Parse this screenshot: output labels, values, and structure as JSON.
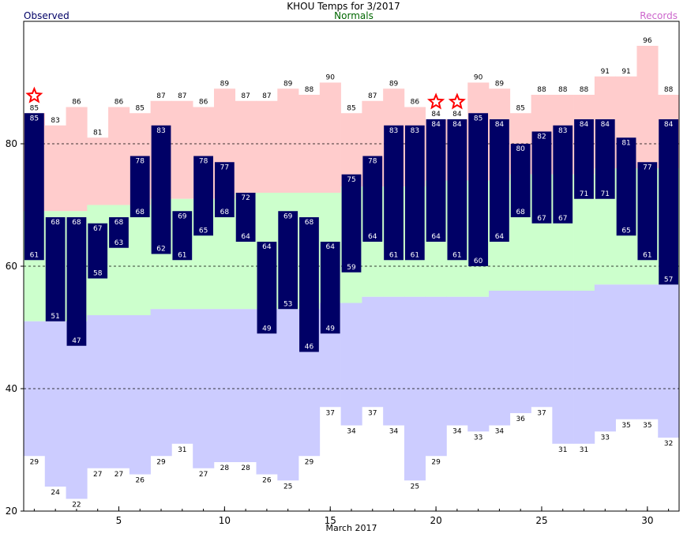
{
  "legend": {
    "observed": "Observed",
    "normals": "Normals",
    "records": "Records"
  },
  "colors": {
    "observed": "#000066",
    "normals_text": "#006600",
    "records_text": "#cc66cc",
    "record_high_band": "#ffcccc",
    "normal_band": "#ccffcc",
    "record_low_band": "#ccccff",
    "star": "#ff0000"
  },
  "chart_data": {
    "type": "bar",
    "title": "KHOU Temps for  3/2017",
    "xlabel": "March 2017",
    "ylabel": "",
    "xlim": [
      1,
      31
    ],
    "ylim": [
      20,
      100
    ],
    "yticks": [
      20,
      40,
      60,
      80
    ],
    "xticks": [
      5,
      10,
      15,
      20,
      25,
      30
    ],
    "grid_y": [
      40,
      60,
      80
    ],
    "days": [
      1,
      2,
      3,
      4,
      5,
      6,
      7,
      8,
      9,
      10,
      11,
      12,
      13,
      14,
      15,
      16,
      17,
      18,
      19,
      20,
      21,
      22,
      23,
      24,
      25,
      26,
      27,
      28,
      29,
      30,
      31
    ],
    "series": [
      {
        "name": "Observed",
        "high": [
          85,
          68,
          68,
          67,
          68,
          78,
          83,
          69,
          78,
          77,
          72,
          64,
          69,
          68,
          64,
          75,
          78,
          83,
          83,
          84,
          84,
          85,
          84,
          80,
          82,
          83,
          84,
          84,
          81,
          77,
          84
        ],
        "low": [
          61,
          51,
          47,
          58,
          63,
          68,
          62,
          61,
          65,
          68,
          64,
          49,
          53,
          46,
          49,
          59,
          64,
          61,
          61,
          64,
          61,
          60,
          64,
          68,
          67,
          67,
          71,
          71,
          65,
          61,
          57
        ]
      },
      {
        "name": "Records",
        "high": [
          85,
          83,
          86,
          81,
          86,
          85,
          87,
          87,
          86,
          89,
          87,
          87,
          89,
          88,
          90,
          85,
          87,
          89,
          86,
          84,
          84,
          90,
          89,
          85,
          88,
          88,
          88,
          91,
          91,
          96,
          88
        ],
        "low": [
          29,
          24,
          22,
          27,
          27,
          26,
          29,
          31,
          27,
          28,
          28,
          26,
          25,
          29,
          37,
          34,
          37,
          34,
          25,
          29,
          34,
          33,
          34,
          36,
          37,
          31,
          31,
          33,
          35,
          35,
          32
        ]
      },
      {
        "name": "Normals",
        "high": [
          69,
          69,
          69,
          70,
          70,
          70,
          71,
          71,
          71,
          71,
          72,
          72,
          72,
          72,
          72,
          73,
          73,
          73,
          73,
          74,
          74,
          74,
          74,
          75,
          75,
          75,
          75,
          76,
          76,
          76,
          76
        ],
        "low": [
          51,
          51,
          51,
          52,
          52,
          52,
          53,
          53,
          53,
          53,
          53,
          53,
          53,
          53,
          54,
          54,
          55,
          55,
          55,
          55,
          55,
          55,
          56,
          56,
          56,
          56,
          56,
          57,
          57,
          57,
          57
        ]
      }
    ],
    "record_days": [
      1,
      20,
      21
    ]
  }
}
